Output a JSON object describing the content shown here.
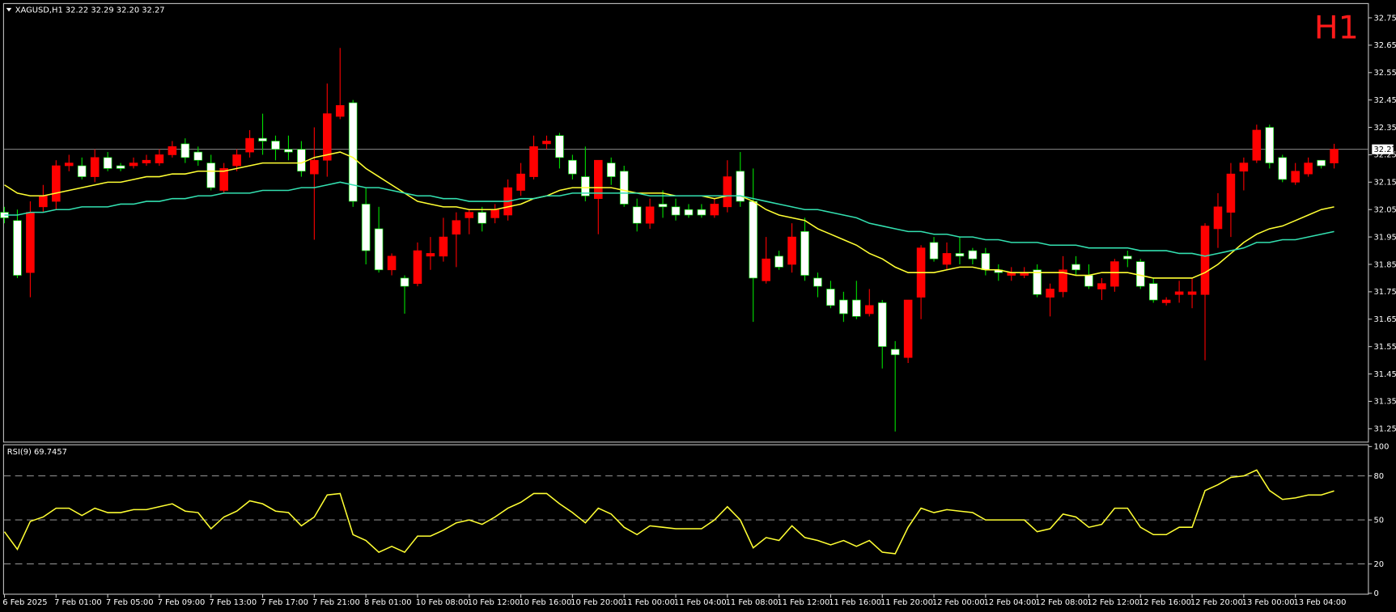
{
  "chart_data": [
    {
      "type": "candlestick",
      "title": "XAGUSD,H1 32.22 32.29 32.20 32.27",
      "timeframe_label": "H1",
      "categories": [
        "6 Feb 2025",
        null,
        null,
        null,
        "7 Feb 01:00",
        null,
        null,
        null,
        "7 Feb 05:00",
        null,
        null,
        null,
        "7 Feb 09:00",
        null,
        null,
        null,
        "7 Feb 13:00",
        null,
        null,
        null,
        "7 Feb 17:00",
        null,
        null,
        null,
        "7 Feb 21:00",
        null,
        null,
        null,
        "8 Feb 01:00",
        null,
        null,
        null,
        "10 Feb 08:00",
        null,
        null,
        null,
        "10 Feb 12:00",
        null,
        null,
        null,
        "10 Feb 16:00",
        null,
        null,
        null,
        "10 Feb 20:00",
        null,
        null,
        null,
        "11 Feb 00:00",
        null,
        null,
        null,
        "11 Feb 04:00",
        null,
        null,
        null,
        "11 Feb 08:00",
        null,
        null,
        null,
        "11 Feb 12:00",
        null,
        null,
        null,
        "11 Feb 16:00",
        null,
        null,
        null,
        "11 Feb 20:00",
        null,
        null,
        null,
        "12 Feb 00:00",
        null,
        null,
        null,
        "12 Feb 04:00",
        null,
        null,
        null,
        "12 Feb 08:00",
        null,
        null,
        null,
        "12 Feb 12:00",
        null,
        null,
        null,
        "12 Feb 16:00",
        null,
        null,
        null,
        "12 Feb 20:00",
        null,
        null,
        null,
        "13 Feb 00:00",
        null,
        null,
        null,
        "13 Feb 04:00",
        null,
        null,
        null
      ],
      "open": [
        32.04,
        32.01,
        31.82,
        32.06,
        32.08,
        32.21,
        32.21,
        32.17,
        32.24,
        32.21,
        32.21,
        32.22,
        32.22,
        32.25,
        32.29,
        32.26,
        32.22,
        32.12,
        32.21,
        32.26,
        32.31,
        32.3,
        32.27,
        32.27,
        32.18,
        32.23,
        32.39,
        32.44,
        32.07,
        31.98,
        31.83,
        31.8,
        31.78,
        31.88,
        31.88,
        31.96,
        32.02,
        32.04,
        32.02,
        32.03,
        32.12,
        32.17,
        32.29,
        32.32,
        32.23,
        32.17,
        32.09,
        32.22,
        32.19,
        32.06,
        32.0,
        32.07,
        32.06,
        32.05,
        32.05,
        32.03,
        32.06,
        32.19,
        32.08,
        31.79,
        31.88,
        31.85,
        31.97,
        31.8,
        31.76,
        31.72,
        31.72,
        31.67,
        31.71,
        31.54,
        31.51,
        31.73,
        31.93,
        31.85,
        31.89,
        31.9,
        31.89,
        31.83,
        31.81,
        31.81,
        31.83,
        31.73,
        31.75,
        31.85,
        31.81,
        31.76,
        31.77,
        31.88,
        31.86,
        31.78,
        31.71,
        31.74,
        31.74,
        31.74,
        31.98,
        32.04,
        32.19,
        32.23,
        32.35,
        32.24,
        32.15,
        32.18,
        32.23,
        32.22
      ],
      "high": [
        32.06,
        32.05,
        32.08,
        32.14,
        32.23,
        32.25,
        32.24,
        32.27,
        32.26,
        32.22,
        32.24,
        32.25,
        32.27,
        32.3,
        32.31,
        32.28,
        32.25,
        32.22,
        32.27,
        32.34,
        32.4,
        32.32,
        32.32,
        32.3,
        32.35,
        32.51,
        32.64,
        32.45,
        32.13,
        32.06,
        31.89,
        31.81,
        31.93,
        31.95,
        32.02,
        32.04,
        32.05,
        32.06,
        32.07,
        32.16,
        32.22,
        32.32,
        32.32,
        32.33,
        32.25,
        32.28,
        32.23,
        32.24,
        32.21,
        32.09,
        32.09,
        32.12,
        32.09,
        32.07,
        32.07,
        32.09,
        32.23,
        32.26,
        32.2,
        31.95,
        31.9,
        32.0,
        32.02,
        31.82,
        31.79,
        31.75,
        31.79,
        31.76,
        31.72,
        31.57,
        31.72,
        31.92,
        31.95,
        31.93,
        31.95,
        31.91,
        31.91,
        31.85,
        31.84,
        31.84,
        31.85,
        31.78,
        31.88,
        31.88,
        31.85,
        31.8,
        31.87,
        31.9,
        31.87,
        31.8,
        31.73,
        31.79,
        31.8,
        32.0,
        32.11,
        32.22,
        32.24,
        32.36,
        32.36,
        32.25,
        32.22,
        32.24,
        32.23,
        32.29
      ],
      "low": [
        32.0,
        31.8,
        31.73,
        32.04,
        32.05,
        32.19,
        32.16,
        32.15,
        32.19,
        32.19,
        32.2,
        32.21,
        32.21,
        32.24,
        32.22,
        32.21,
        32.12,
        32.11,
        32.19,
        32.24,
        32.25,
        32.23,
        32.23,
        32.17,
        31.94,
        32.17,
        32.38,
        32.06,
        31.85,
        31.82,
        31.81,
        31.67,
        31.77,
        31.83,
        31.86,
        31.84,
        31.96,
        31.97,
        32.0,
        32.01,
        32.1,
        32.16,
        32.27,
        32.2,
        32.16,
        32.08,
        31.96,
        32.14,
        32.06,
        31.97,
        31.98,
        32.02,
        32.01,
        32.02,
        32.02,
        32.02,
        32.04,
        32.06,
        31.64,
        31.78,
        31.83,
        31.82,
        31.79,
        31.73,
        31.69,
        31.64,
        31.65,
        31.66,
        31.47,
        31.24,
        31.49,
        31.65,
        31.86,
        31.83,
        31.85,
        31.85,
        31.81,
        31.79,
        31.79,
        31.8,
        31.73,
        31.66,
        31.73,
        31.81,
        31.76,
        31.72,
        31.75,
        31.84,
        31.76,
        31.71,
        31.7,
        31.71,
        31.69,
        31.5,
        31.91,
        31.95,
        32.12,
        32.22,
        32.2,
        32.15,
        32.14,
        32.17,
        32.2,
        32.2
      ],
      "close": [
        32.02,
        31.81,
        32.04,
        32.1,
        32.21,
        32.22,
        32.17,
        32.24,
        32.2,
        32.2,
        32.22,
        32.23,
        32.25,
        32.28,
        32.24,
        32.23,
        32.13,
        32.2,
        32.25,
        32.31,
        32.3,
        32.27,
        32.26,
        32.19,
        32.23,
        32.4,
        32.43,
        32.08,
        31.9,
        31.83,
        31.88,
        31.77,
        31.9,
        31.89,
        31.95,
        32.01,
        32.04,
        32.0,
        32.05,
        32.13,
        32.18,
        32.28,
        32.3,
        32.24,
        32.18,
        32.1,
        32.23,
        32.17,
        32.07,
        32.0,
        32.06,
        32.06,
        32.03,
        32.03,
        32.03,
        32.07,
        32.17,
        32.08,
        31.8,
        31.87,
        31.84,
        31.95,
        31.81,
        31.77,
        31.7,
        31.67,
        31.66,
        31.7,
        31.55,
        31.52,
        31.72,
        31.91,
        31.87,
        31.89,
        31.88,
        31.87,
        31.83,
        31.82,
        31.82,
        31.82,
        31.74,
        31.76,
        31.83,
        31.83,
        31.77,
        31.78,
        31.86,
        31.87,
        31.77,
        31.72,
        31.72,
        31.75,
        31.75,
        31.99,
        32.06,
        32.18,
        32.22,
        32.34,
        32.22,
        32.16,
        32.19,
        32.22,
        32.21,
        32.27
      ],
      "up_color": "#ff0000",
      "down_color": "#ffffff",
      "up_wick_color": "#ff0000",
      "down_wick_color": "#00e000",
      "series": [
        {
          "color": "#ffff33",
          "values": [
            32.14,
            32.11,
            32.1,
            32.1,
            32.11,
            32.12,
            32.13,
            32.14,
            32.15,
            32.15,
            32.16,
            32.17,
            32.17,
            32.18,
            32.18,
            32.19,
            32.19,
            32.19,
            32.2,
            32.21,
            32.22,
            32.22,
            32.22,
            32.22,
            32.24,
            32.25,
            32.26,
            32.24,
            32.2,
            32.17,
            32.14,
            32.11,
            32.08,
            32.07,
            32.06,
            32.06,
            32.05,
            32.05,
            32.05,
            32.06,
            32.07,
            32.09,
            32.1,
            32.12,
            32.13,
            32.13,
            32.13,
            32.13,
            32.12,
            32.11,
            32.11,
            32.11,
            32.1,
            32.1,
            32.1,
            32.09,
            32.1,
            32.1,
            32.08,
            32.05,
            32.03,
            32.02,
            32.01,
            31.98,
            31.96,
            31.94,
            31.92,
            31.89,
            31.87,
            31.84,
            31.82,
            31.82,
            31.82,
            31.83,
            31.84,
            31.84,
            31.83,
            31.83,
            31.82,
            31.82,
            31.82,
            31.82,
            31.82,
            31.81,
            31.81,
            31.82,
            31.82,
            31.82,
            31.81,
            31.8,
            31.8,
            31.8,
            31.8,
            31.82,
            31.85,
            31.89,
            31.93,
            31.96,
            31.98,
            31.99,
            32.01,
            32.03,
            32.05,
            32.06
          ]
        },
        {
          "color": "#33e0b0",
          "values": [
            32.03,
            32.03,
            32.04,
            32.04,
            32.05,
            32.05,
            32.06,
            32.06,
            32.06,
            32.07,
            32.07,
            32.08,
            32.08,
            32.09,
            32.09,
            32.1,
            32.1,
            32.11,
            32.11,
            32.11,
            32.12,
            32.12,
            32.12,
            32.13,
            32.13,
            32.14,
            32.15,
            32.14,
            32.13,
            32.13,
            32.12,
            32.11,
            32.1,
            32.1,
            32.09,
            32.09,
            32.08,
            32.08,
            32.08,
            32.08,
            32.09,
            32.09,
            32.1,
            32.1,
            32.11,
            32.11,
            32.11,
            32.11,
            32.11,
            32.11,
            32.1,
            32.1,
            32.1,
            32.1,
            32.1,
            32.1,
            32.1,
            32.1,
            32.09,
            32.08,
            32.07,
            32.06,
            32.05,
            32.05,
            32.04,
            32.03,
            32.02,
            32.0,
            31.99,
            31.98,
            31.97,
            31.97,
            31.96,
            31.96,
            31.95,
            31.95,
            31.94,
            31.94,
            31.93,
            31.93,
            31.93,
            31.92,
            31.92,
            31.92,
            31.91,
            31.91,
            31.91,
            31.91,
            31.9,
            31.9,
            31.9,
            31.89,
            31.89,
            31.88,
            31.89,
            31.9,
            31.91,
            31.93,
            31.93,
            31.94,
            31.94,
            31.95,
            31.96,
            31.97
          ]
        }
      ],
      "last_price": 32.27,
      "ylim": [
        31.2,
        32.8
      ],
      "yticks": [
        32.75,
        32.65,
        32.55,
        32.45,
        32.35,
        32.25,
        32.15,
        32.05,
        31.95,
        31.85,
        31.75,
        31.65,
        31.55,
        31.45,
        31.35,
        31.25
      ]
    },
    {
      "type": "line",
      "title": "RSI(9) 69.7457",
      "values": [
        42,
        30,
        49,
        52,
        58,
        58,
        53,
        58,
        55,
        55,
        57,
        57,
        59,
        61,
        56,
        55,
        44,
        52,
        56,
        63,
        61,
        56,
        55,
        46,
        52,
        67,
        68,
        40,
        36,
        28,
        32,
        28,
        39,
        39,
        43,
        48,
        50,
        47,
        52,
        58,
        62,
        68,
        68,
        61,
        55,
        48,
        58,
        54,
        45,
        40,
        46,
        45,
        44,
        44,
        44,
        50,
        59,
        50,
        31,
        38,
        36,
        46,
        38,
        36,
        33,
        36,
        32,
        36,
        28,
        27,
        45,
        58,
        55,
        57,
        56,
        55,
        50,
        50,
        50,
        50,
        42,
        44,
        54,
        52,
        45,
        47,
        58,
        58,
        45,
        40,
        40,
        45,
        45,
        70,
        74,
        79,
        80,
        84,
        70,
        64,
        65,
        67,
        67,
        69.7457
      ],
      "color": "#ffff33",
      "ylim": [
        0,
        100
      ],
      "yticks": [
        100,
        80,
        50,
        20,
        0
      ],
      "levels": [
        80,
        50,
        20
      ]
    }
  ]
}
